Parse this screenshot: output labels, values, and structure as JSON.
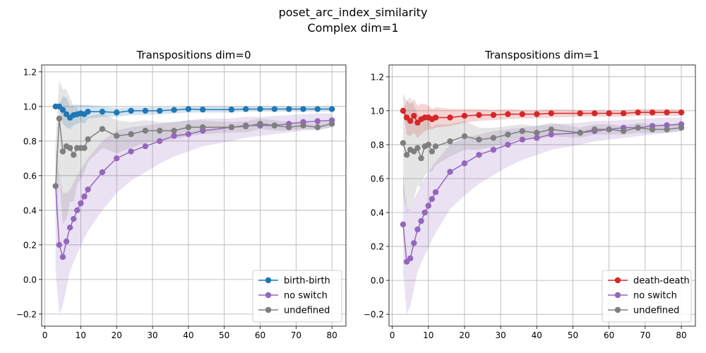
{
  "suptitle": "poset_arc_index_similarity",
  "subtitle": "Complex dim=1",
  "chart_data": [
    {
      "type": "line",
      "title": "Transpositions dim=0",
      "xlabel": "",
      "ylabel": "",
      "xlim": [
        -0.9,
        83.9
      ],
      "ylim": [
        -0.27,
        1.24
      ],
      "xticks": [
        0,
        10,
        20,
        30,
        40,
        50,
        60,
        70,
        80
      ],
      "yticks": [
        -0.2,
        0.0,
        0.2,
        0.4,
        0.6,
        0.8,
        1.0,
        1.2
      ],
      "grid": true,
      "legend_position": "lower right",
      "series": [
        {
          "name": "birth-birth",
          "color": "#1f77b4",
          "x": [
            3,
            4,
            5,
            6,
            7,
            8,
            9,
            10,
            11,
            12,
            16,
            20,
            24,
            28,
            32,
            36,
            40,
            44,
            52,
            56,
            60,
            64,
            68,
            72,
            76,
            80
          ],
          "y": [
            1.0,
            1.0,
            0.98,
            0.955,
            0.935,
            0.95,
            0.955,
            0.96,
            0.955,
            0.97,
            0.97,
            0.965,
            0.975,
            0.975,
            0.975,
            0.98,
            0.985,
            0.982,
            0.982,
            0.985,
            0.985,
            0.985,
            0.985,
            0.985,
            0.985,
            0.985
          ],
          "lower": [
            1.0,
            0.99,
            0.9,
            0.88,
            0.87,
            0.89,
            0.9,
            0.91,
            0.9,
            0.93,
            0.94,
            0.94,
            0.95,
            0.95,
            0.955,
            0.96,
            0.965,
            0.965,
            0.965,
            0.97,
            0.97,
            0.97,
            0.97,
            0.97,
            0.97,
            0.97
          ],
          "upper": [
            1.0,
            1.01,
            1.06,
            1.05,
            1.0,
            1.01,
            1.01,
            1.01,
            1.01,
            1.01,
            1.0,
            0.99,
            0.995,
            0.995,
            0.995,
            0.995,
            1.0,
            1.0,
            1.0,
            1.0,
            1.0,
            1.0,
            1.0,
            1.0,
            1.0,
            1.0
          ]
        },
        {
          "name": "no switch",
          "color": "#9467bd",
          "x": [
            3,
            4,
            5,
            6,
            7,
            8,
            9,
            10,
            11,
            12,
            16,
            20,
            24,
            28,
            32,
            36,
            40,
            44,
            52,
            56,
            60,
            64,
            68,
            72,
            76,
            80
          ],
          "y": [
            0.54,
            0.2,
            0.13,
            0.22,
            0.3,
            0.35,
            0.4,
            0.44,
            0.48,
            0.52,
            0.62,
            0.7,
            0.74,
            0.77,
            0.8,
            0.83,
            0.84,
            0.86,
            0.88,
            0.89,
            0.89,
            0.89,
            0.9,
            0.91,
            0.915,
            0.92
          ],
          "lower": [
            0.05,
            -0.2,
            -0.15,
            -0.05,
            0.05,
            0.1,
            0.15,
            0.19,
            0.24,
            0.28,
            0.4,
            0.5,
            0.57,
            0.62,
            0.67,
            0.71,
            0.74,
            0.77,
            0.8,
            0.82,
            0.83,
            0.84,
            0.85,
            0.86,
            0.87,
            0.88
          ],
          "upper": [
            0.8,
            0.6,
            0.5,
            0.5,
            0.52,
            0.56,
            0.6,
            0.64,
            0.67,
            0.7,
            0.8,
            0.86,
            0.88,
            0.89,
            0.9,
            0.91,
            0.92,
            0.93,
            0.93,
            0.94,
            0.94,
            0.945,
            0.95,
            0.955,
            0.96,
            0.96
          ]
        },
        {
          "name": "undefined",
          "color": "#7f7f7f",
          "x": [
            3,
            4,
            5,
            6,
            7,
            8,
            9,
            10,
            11,
            12,
            16,
            20,
            24,
            28,
            32,
            36,
            40,
            44,
            52,
            56,
            60,
            64,
            68,
            72,
            76,
            80
          ],
          "y": [
            0.54,
            0.93,
            0.74,
            0.77,
            0.76,
            0.72,
            0.76,
            0.76,
            0.76,
            0.81,
            0.87,
            0.83,
            0.84,
            0.86,
            0.86,
            0.86,
            0.88,
            0.88,
            0.88,
            0.885,
            0.9,
            0.89,
            0.88,
            0.89,
            0.88,
            0.9
          ],
          "lower": [
            0.3,
            0.6,
            0.32,
            0.35,
            0.45,
            0.45,
            0.55,
            0.58,
            0.62,
            0.68,
            0.76,
            0.73,
            0.76,
            0.79,
            0.8,
            0.81,
            0.83,
            0.84,
            0.85,
            0.85,
            0.87,
            0.86,
            0.86,
            0.87,
            0.86,
            0.88
          ],
          "upper": [
            0.8,
            1.15,
            1.1,
            1.1,
            1.05,
            1.0,
            0.99,
            0.96,
            0.93,
            0.94,
            0.96,
            0.92,
            0.91,
            0.92,
            0.91,
            0.91,
            0.92,
            0.92,
            0.91,
            0.915,
            0.93,
            0.92,
            0.91,
            0.91,
            0.9,
            0.92
          ]
        }
      ]
    },
    {
      "type": "line",
      "title": "Transpositions dim=1",
      "xlabel": "",
      "ylabel": "",
      "xlim": [
        -0.9,
        83.9
      ],
      "ylim": [
        -0.27,
        1.27
      ],
      "xticks": [
        0,
        10,
        20,
        30,
        40,
        50,
        60,
        70,
        80
      ],
      "yticks": [
        -0.2,
        0.0,
        0.2,
        0.4,
        0.6,
        0.8,
        1.0,
        1.2
      ],
      "grid": true,
      "legend_position": "lower right",
      "series": [
        {
          "name": "death-death",
          "color": "#d62728",
          "x": [
            3,
            4,
            5,
            6,
            7,
            8,
            9,
            10,
            11,
            12,
            16,
            20,
            24,
            28,
            32,
            36,
            40,
            44,
            52,
            56,
            60,
            64,
            68,
            72,
            76,
            80
          ],
          "y": [
            1.0,
            0.96,
            0.94,
            0.97,
            0.93,
            0.95,
            0.96,
            0.96,
            0.95,
            0.96,
            0.96,
            0.97,
            0.975,
            0.975,
            0.98,
            0.98,
            0.98,
            0.985,
            0.985,
            0.985,
            0.985,
            0.985,
            0.99,
            0.99,
            0.99,
            0.99
          ],
          "lower": [
            1.0,
            0.86,
            0.85,
            0.87,
            0.84,
            0.86,
            0.88,
            0.89,
            0.89,
            0.9,
            0.91,
            0.93,
            0.94,
            0.945,
            0.95,
            0.955,
            0.955,
            0.96,
            0.965,
            0.965,
            0.965,
            0.965,
            0.97,
            0.97,
            0.97,
            0.97
          ],
          "upper": [
            1.0,
            1.06,
            1.04,
            1.07,
            1.03,
            1.04,
            1.04,
            1.03,
            1.01,
            1.02,
            1.01,
            1.01,
            1.01,
            1.005,
            1.01,
            1.005,
            1.005,
            1.01,
            1.005,
            1.005,
            1.005,
            1.005,
            1.01,
            1.01,
            1.01,
            1.01
          ]
        },
        {
          "name": "no switch",
          "color": "#9467bd",
          "x": [
            3,
            4,
            5,
            6,
            7,
            8,
            9,
            10,
            11,
            12,
            16,
            20,
            24,
            28,
            32,
            36,
            40,
            44,
            52,
            56,
            60,
            64,
            68,
            72,
            76,
            80
          ],
          "y": [
            0.33,
            0.11,
            0.13,
            0.22,
            0.3,
            0.35,
            0.4,
            0.44,
            0.48,
            0.52,
            0.64,
            0.69,
            0.74,
            0.77,
            0.8,
            0.83,
            0.84,
            0.86,
            0.87,
            0.88,
            0.89,
            0.9,
            0.9,
            0.91,
            0.915,
            0.92
          ],
          "lower": [
            0.05,
            -0.2,
            -0.15,
            -0.05,
            0.05,
            0.1,
            0.15,
            0.19,
            0.24,
            0.28,
            0.42,
            0.5,
            0.57,
            0.62,
            0.67,
            0.71,
            0.74,
            0.77,
            0.8,
            0.82,
            0.83,
            0.84,
            0.85,
            0.86,
            0.87,
            0.88
          ],
          "upper": [
            0.62,
            0.42,
            0.42,
            0.48,
            0.52,
            0.56,
            0.6,
            0.64,
            0.67,
            0.7,
            0.8,
            0.84,
            0.86,
            0.88,
            0.89,
            0.9,
            0.91,
            0.92,
            0.93,
            0.94,
            0.94,
            0.945,
            0.95,
            0.955,
            0.96,
            0.96
          ]
        },
        {
          "name": "undefined",
          "color": "#7f7f7f",
          "x": [
            3,
            4,
            5,
            6,
            7,
            8,
            9,
            10,
            11,
            12,
            16,
            20,
            24,
            28,
            32,
            36,
            40,
            44,
            52,
            56,
            60,
            64,
            68,
            72,
            76,
            80
          ],
          "y": [
            0.81,
            0.74,
            0.77,
            0.76,
            0.78,
            0.72,
            0.79,
            0.8,
            0.76,
            0.79,
            0.82,
            0.85,
            0.83,
            0.84,
            0.86,
            0.88,
            0.87,
            0.89,
            0.87,
            0.89,
            0.89,
            0.88,
            0.9,
            0.89,
            0.89,
            0.9
          ],
          "lower": [
            0.5,
            0.4,
            0.42,
            0.48,
            0.56,
            0.55,
            0.62,
            0.64,
            0.64,
            0.68,
            0.73,
            0.77,
            0.77,
            0.79,
            0.81,
            0.84,
            0.83,
            0.85,
            0.84,
            0.86,
            0.86,
            0.86,
            0.87,
            0.87,
            0.87,
            0.88
          ],
          "upper": [
            1.1,
            1.06,
            1.08,
            1.03,
            0.99,
            0.92,
            0.95,
            0.95,
            0.9,
            0.92,
            0.92,
            0.94,
            0.9,
            0.9,
            0.91,
            0.92,
            0.91,
            0.93,
            0.9,
            0.92,
            0.92,
            0.91,
            0.93,
            0.92,
            0.92,
            0.93
          ]
        }
      ]
    }
  ]
}
